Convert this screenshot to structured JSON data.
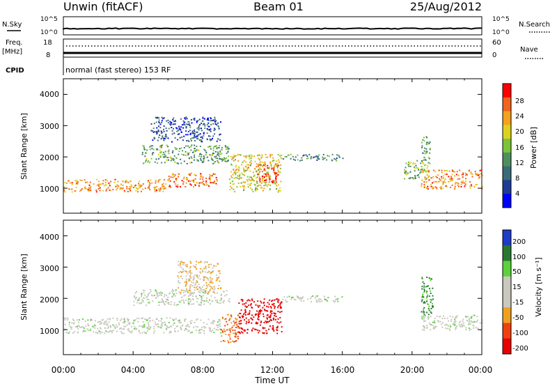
{
  "header": {
    "station": "Unwin (fitACF)",
    "beam": "Beam 01",
    "date": "25/Aug/2012"
  },
  "aux_panels": {
    "nsky_label": "N.Sky",
    "nsearch_label": "N.Search",
    "nsky_ticks": [
      "10^5",
      "10^0"
    ],
    "freq_label": "Freq.",
    "freq_unit": "[MHz]",
    "freq_ticks": [
      "18",
      "8"
    ],
    "nave_label": "Nave",
    "nave_ticks": [
      "60",
      "0"
    ],
    "cpid_label": "CPID",
    "cpid_text": "normal (fast stereo) 153 RF"
  },
  "power_panel": {
    "ylabel": "Slant Range [km]",
    "yticks": [
      "4000",
      "3000",
      "2000",
      "1000"
    ],
    "colorbar_label": "Power [dB]",
    "colorbar_ticks": [
      "28",
      "24",
      "20",
      "16",
      "12",
      "8",
      "4"
    ]
  },
  "velocity_panel": {
    "ylabel": "Slant Range [km]",
    "yticks": [
      "4000",
      "3000",
      "2000",
      "1000"
    ],
    "colorbar_label": "Velocity [m s⁻¹]",
    "colorbar_ticks": [
      "200",
      "100",
      "50",
      "15",
      "-15",
      "-50",
      "-100",
      "-200"
    ]
  },
  "xaxis": {
    "ticks": [
      "00:00",
      "04:00",
      "08:00",
      "12:00",
      "16:00",
      "20:00",
      "00:00"
    ],
    "label": "Time UT"
  },
  "colors": {
    "power_scale": [
      "#0000ff",
      "#1e3c96",
      "#3a6b78",
      "#4f8f5f",
      "#7cc33a",
      "#dcd21e",
      "#f5a01e",
      "#f0641e",
      "#ff0000"
    ],
    "velocity_scale": [
      "#e80000",
      "#f04010",
      "#f0a020",
      "#c8c8be",
      "#c8c8be",
      "#5ad23c",
      "#287832",
      "#1e3cc8"
    ]
  },
  "chart_data": {
    "type": "heatmap",
    "x_range_hours_ut": [
      0,
      24
    ],
    "y_range_km": [
      200,
      4500
    ],
    "regions": [
      {
        "panel": "power",
        "t": [
          0.0,
          6.0
        ],
        "range_km": [
          900,
          1300
        ],
        "value_db": 22
      },
      {
        "panel": "power",
        "t": [
          6.0,
          8.8
        ],
        "range_km": [
          1050,
          1500
        ],
        "value_db": 24
      },
      {
        "panel": "power",
        "t": [
          4.5,
          9.5
        ],
        "range_km": [
          1800,
          2400
        ],
        "value_db": 12
      },
      {
        "panel": "power",
        "t": [
          5.0,
          9.0
        ],
        "range_km": [
          2500,
          3300
        ],
        "value_db": 6
      },
      {
        "panel": "power",
        "t": [
          9.5,
          12.5
        ],
        "range_km": [
          900,
          2100
        ],
        "value_db": 18
      },
      {
        "panel": "power",
        "t": [
          11.0,
          12.3
        ],
        "range_km": [
          1200,
          1800
        ],
        "value_db": 26
      },
      {
        "panel": "power",
        "t": [
          12.5,
          16.0
        ],
        "range_km": [
          1900,
          2100
        ],
        "value_db": 10
      },
      {
        "panel": "power",
        "t": [
          19.5,
          21.0
        ],
        "range_km": [
          1300,
          1900
        ],
        "value_db": 14
      },
      {
        "panel": "power",
        "t": [
          20.5,
          24.0
        ],
        "range_km": [
          1000,
          1600
        ],
        "value_db": 22
      },
      {
        "panel": "power",
        "t": [
          20.5,
          21.0
        ],
        "range_km": [
          1800,
          2700
        ],
        "value_db": 12
      },
      {
        "panel": "velocity",
        "t": [
          0.0,
          9.0
        ],
        "range_km": [
          900,
          1400
        ],
        "value_ms": 0
      },
      {
        "panel": "velocity",
        "t": [
          4.0,
          9.5
        ],
        "range_km": [
          1800,
          2300
        ],
        "value_ms": 0
      },
      {
        "panel": "velocity",
        "t": [
          6.5,
          9.0
        ],
        "range_km": [
          2200,
          3200
        ],
        "value_ms": -30
      },
      {
        "panel": "velocity",
        "t": [
          10.0,
          12.5
        ],
        "range_km": [
          900,
          2000
        ],
        "value_ms": -200
      },
      {
        "panel": "velocity",
        "t": [
          9.0,
          10.0
        ],
        "range_km": [
          600,
          1500
        ],
        "value_ms": -80
      },
      {
        "panel": "velocity",
        "t": [
          12.5,
          16.0
        ],
        "range_km": [
          1900,
          2100
        ],
        "value_ms": 0
      },
      {
        "panel": "velocity",
        "t": [
          20.5,
          24.0
        ],
        "range_km": [
          1000,
          1500
        ],
        "value_ms": 0
      },
      {
        "panel": "velocity",
        "t": [
          20.5,
          21.2
        ],
        "range_km": [
          1500,
          2700
        ],
        "value_ms": 60
      }
    ]
  }
}
